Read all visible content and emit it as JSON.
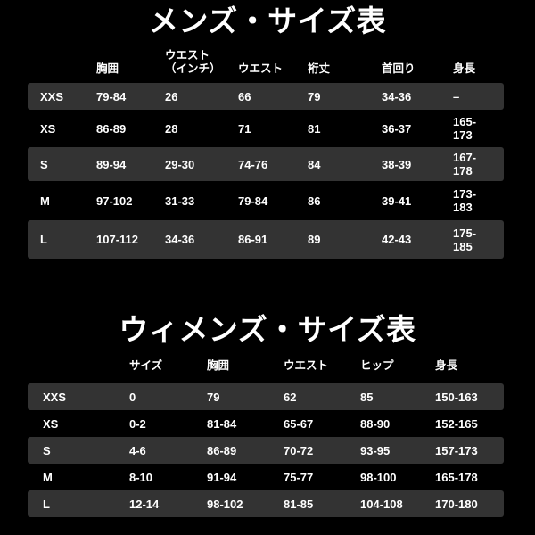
{
  "page": {
    "background_color": "#000000",
    "row_stripe_color": "#333333",
    "text_color": "#ffffff"
  },
  "mens": {
    "title": "メンズ・サイズ表",
    "headers": [
      "",
      "胸囲",
      "ウエスト\n（インチ）",
      "ウエスト",
      "裄丈",
      "首回り",
      "身長"
    ],
    "rows": [
      {
        "size": "XXS",
        "values": [
          "79-84",
          "26",
          "66",
          "79",
          "34-36",
          "–"
        ]
      },
      {
        "size": "XS",
        "values": [
          "86-89",
          "28",
          "71",
          "81",
          "36-37",
          "165-173"
        ]
      },
      {
        "size": "S",
        "values": [
          "89-94",
          "29-30",
          "74-76",
          "84",
          "38-39",
          "167-178"
        ]
      },
      {
        "size": "M",
        "values": [
          "97-102",
          "31-33",
          "79-84",
          "86",
          "39-41",
          "173-183"
        ]
      },
      {
        "size": "L",
        "values": [
          "107-112",
          "34-36",
          "86-91",
          "89",
          "42-43",
          "175-185"
        ]
      }
    ]
  },
  "womens": {
    "title": "ウィメンズ・サイズ表",
    "headers": [
      "",
      "サイズ",
      "胸囲",
      "ウエスト",
      "ヒップ",
      "身長"
    ],
    "rows": [
      {
        "size": "XXS",
        "values": [
          "0",
          "79",
          "62",
          "85",
          "150-163"
        ]
      },
      {
        "size": "XS",
        "values": [
          "0-2",
          "81-84",
          "65-67",
          "88-90",
          "152-165"
        ]
      },
      {
        "size": "S",
        "values": [
          "4-6",
          "86-89",
          "70-72",
          "93-95",
          "157-173"
        ]
      },
      {
        "size": "M",
        "values": [
          "8-10",
          "91-94",
          "75-77",
          "98-100",
          "165-178"
        ]
      },
      {
        "size": "L",
        "values": [
          "12-14",
          "98-102",
          "81-85",
          "104-108",
          "170-180"
        ]
      }
    ]
  }
}
